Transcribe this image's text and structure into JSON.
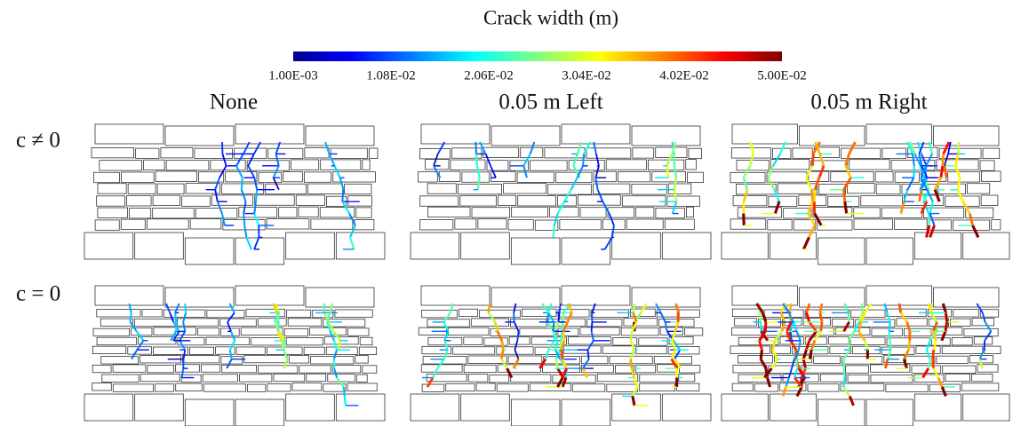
{
  "colorbar": {
    "title": "Crack width (m)",
    "ticks": [
      "1.00E-03",
      "1.08E-02",
      "2.06E-02",
      "3.04E-02",
      "4.02E-02",
      "5.00E-02"
    ]
  },
  "columns": [
    "None",
    "0.05 m Left",
    "0.05 m Right"
  ],
  "rows": [
    "c ≠ 0",
    "c = 0"
  ]
}
